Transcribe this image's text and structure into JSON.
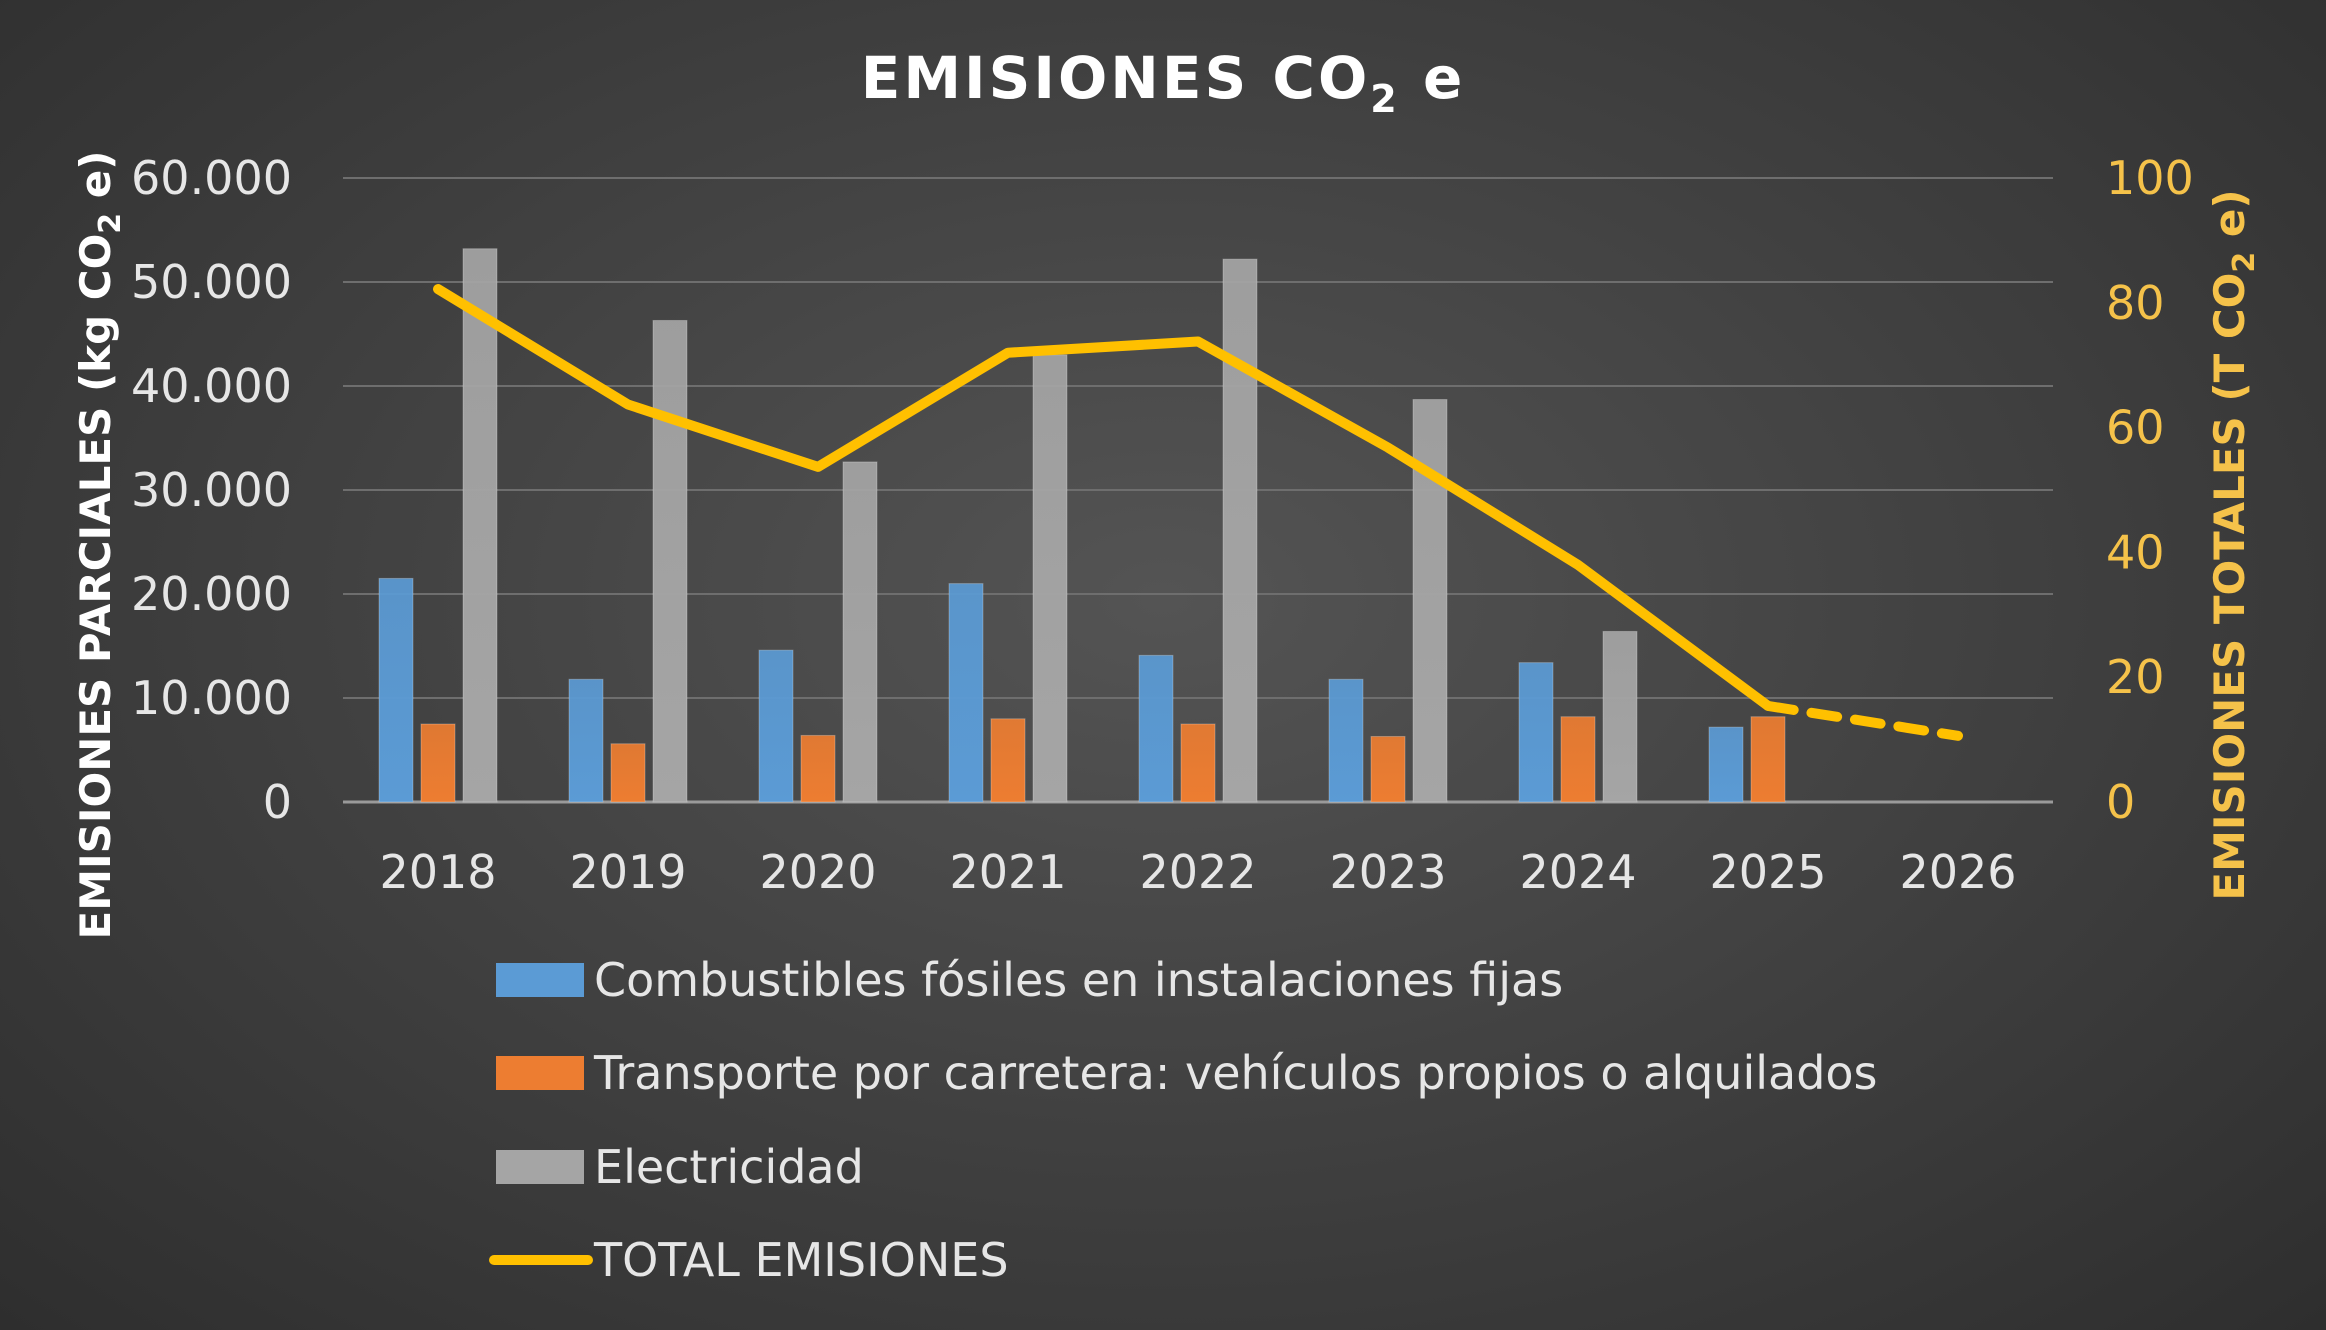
{
  "chart_data": {
    "type": "bar",
    "title": {
      "main": "EMISIONES CO",
      "sub": "2",
      "tail": " e"
    },
    "categories": [
      "2018",
      "2019",
      "2020",
      "2021",
      "2022",
      "2023",
      "2024",
      "2025",
      "2026"
    ],
    "y_left": {
      "label_parts": {
        "a": "EMISIONES PARCIALES (kg CO",
        "sub": "2",
        "b": " e)"
      },
      "ylim": [
        0,
        60000
      ],
      "ticks": [
        0,
        10000,
        20000,
        30000,
        40000,
        50000,
        60000
      ],
      "tick_labels": [
        "0",
        "10.000",
        "20.000",
        "30.000",
        "40.000",
        "50.000",
        "60.000"
      ]
    },
    "y_right": {
      "label_parts": {
        "a": "EMISIONES TOTALES (T  CO",
        "sub": "2",
        "b": " e)"
      },
      "ylim": [
        0,
        100
      ],
      "ticks": [
        0,
        20,
        40,
        60,
        80,
        100
      ],
      "tick_labels": [
        "0",
        "20",
        "40",
        "60",
        "80",
        "100"
      ]
    },
    "series": [
      {
        "name": "Combustibles fósiles en instalaciones fijas",
        "kind": "bar",
        "color": "#5b9bd5",
        "values": [
          21500,
          11800,
          14600,
          21000,
          14100,
          11800,
          13400,
          7200,
          null
        ]
      },
      {
        "name": "Transporte por carretera: vehículos propios o alquilados",
        "kind": "bar",
        "color": "#ed7d31",
        "values": [
          7500,
          5600,
          6400,
          8000,
          7500,
          6300,
          8200,
          8200,
          null
        ]
      },
      {
        "name": "Electricidad",
        "kind": "bar",
        "color": "#a5a5a5",
        "values": [
          53200,
          46300,
          32700,
          43000,
          52200,
          38700,
          16400,
          null,
          null
        ]
      },
      {
        "name": "TOTAL EMISIONES",
        "kind": "line",
        "axis": "right",
        "color": "#ffc000",
        "values": [
          82.2,
          63.7,
          53.7,
          72.0,
          73.8,
          56.8,
          38.0,
          15.4,
          10.6
        ],
        "dashed_from_index": 7
      }
    ],
    "grid": true,
    "legend": "bottom"
  }
}
